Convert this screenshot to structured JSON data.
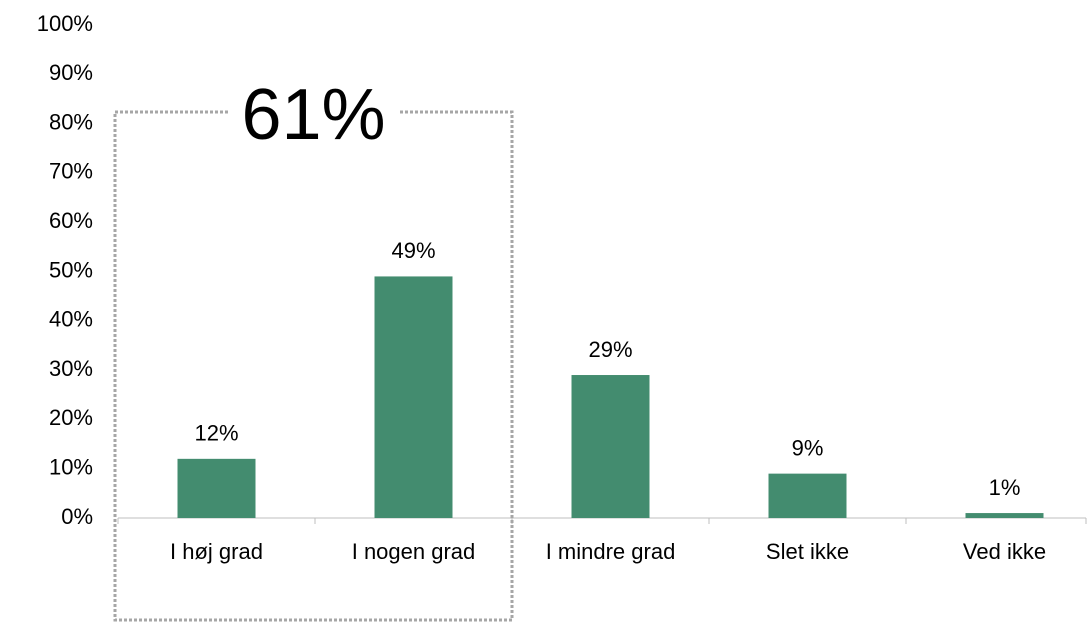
{
  "chart_data": {
    "type": "bar",
    "categories": [
      "I høj grad",
      "I nogen grad",
      "I mindre grad",
      "Slet ikke",
      "Ved ikke"
    ],
    "values": [
      12,
      49,
      29,
      9,
      1
    ],
    "value_labels": [
      "12%",
      "49%",
      "29%",
      "9%",
      "1%"
    ],
    "color": "#438c6f",
    "ylim": [
      0,
      100
    ],
    "yticks": [
      {
        "value": 0,
        "label": "0%"
      },
      {
        "value": 10,
        "label": "10%"
      },
      {
        "value": 20,
        "label": "20%"
      },
      {
        "value": 30,
        "label": "30%"
      },
      {
        "value": 40,
        "label": "40%"
      },
      {
        "value": 50,
        "label": "50%"
      },
      {
        "value": 60,
        "label": "60%"
      },
      {
        "value": 70,
        "label": "70%"
      },
      {
        "value": 80,
        "label": "80%"
      },
      {
        "value": 90,
        "label": "90%"
      },
      {
        "value": 100,
        "label": "100%"
      }
    ],
    "grid": false,
    "annotation": "61%"
  }
}
